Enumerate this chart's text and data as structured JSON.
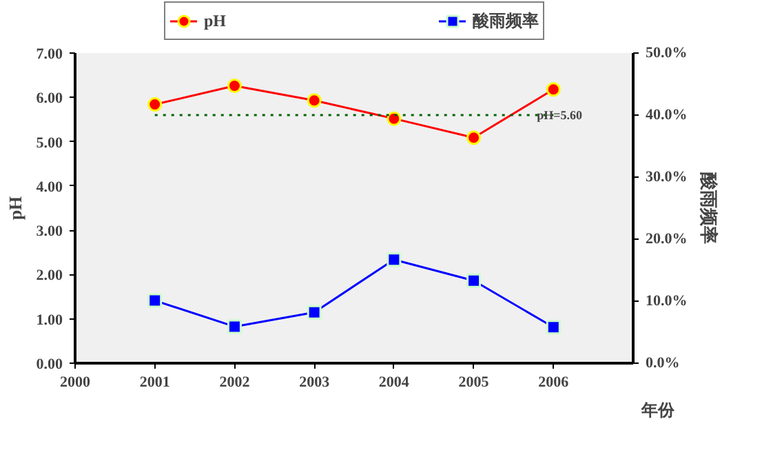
{
  "chart_data": {
    "type": "line",
    "x": [
      2001,
      2002,
      2003,
      2004,
      2005,
      2006
    ],
    "series": [
      {
        "name": "pH",
        "color": "#ff0000",
        "marker": "circle",
        "values": [
          5.84,
          6.26,
          5.93,
          5.52,
          5.09,
          6.18
        ]
      },
      {
        "name": "酸雨频率",
        "color": "#0000ff",
        "marker": "square",
        "axis": "y2",
        "values": [
          10.1,
          5.9,
          8.2,
          16.7,
          13.3,
          5.8
        ]
      }
    ],
    "xlim": [
      2000,
      2007
    ],
    "xticks": [
      2000,
      2001,
      2002,
      2003,
      2004,
      2005,
      2006
    ],
    "ylim": [
      0,
      7
    ],
    "yticks": [
      {
        "value": 0,
        "label": "0.00"
      },
      {
        "value": 1,
        "label": "1.00"
      },
      {
        "value": 2,
        "label": "2.00"
      },
      {
        "value": 3,
        "label": "3.00"
      },
      {
        "value": 4,
        "label": "4.00"
      },
      {
        "value": 5,
        "label": "5.00"
      },
      {
        "value": 6,
        "label": "6.00"
      },
      {
        "value": 7,
        "label": "7.00"
      }
    ],
    "y2lim": [
      0,
      50
    ],
    "y2ticks": [
      {
        "value": 0,
        "label": "0.0%"
      },
      {
        "value": 10,
        "label": "10.0%"
      },
      {
        "value": 20,
        "label": "20.0%"
      },
      {
        "value": 30,
        "label": "30.0%"
      },
      {
        "value": 40,
        "label": "40.0%"
      },
      {
        "value": 50,
        "label": "50.0%"
      }
    ],
    "xlabel": "年份",
    "ylabel": "pH",
    "y2label": "酸雨频率",
    "ref_lines": [
      {
        "axis": "y",
        "value": 5.6,
        "label": "pH=5.60",
        "color": "#006400",
        "line_style": "dotted"
      }
    ],
    "legend": "top",
    "grid": false,
    "line_style": "solid"
  }
}
